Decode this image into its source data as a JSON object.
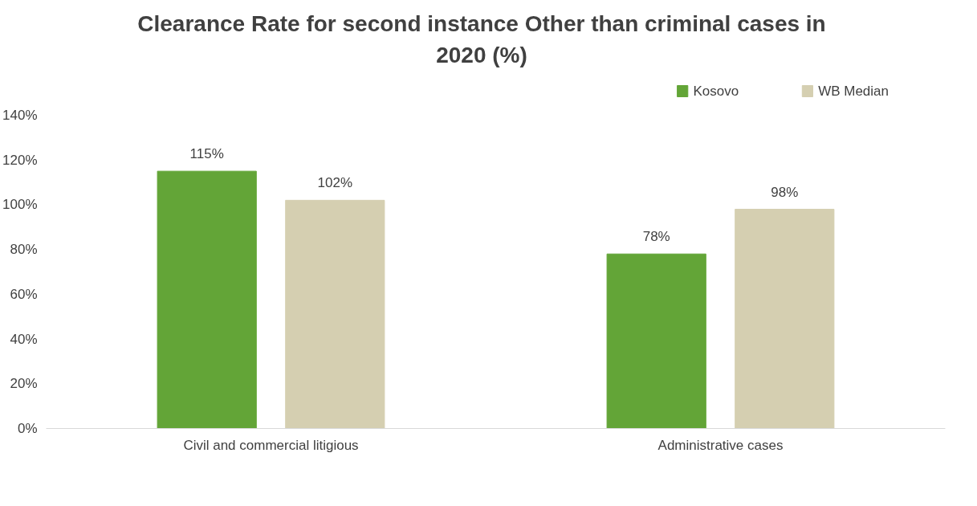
{
  "chart_data": {
    "type": "bar",
    "title": "Clearance Rate for second instance Other than criminal cases in\n2020 (%)",
    "categories": [
      "Civil and commercial litigious",
      "Administrative cases"
    ],
    "series": [
      {
        "name": "Kosovo",
        "color": "#63a537",
        "values": [
          115,
          78
        ],
        "value_labels": [
          "115%",
          "78%"
        ]
      },
      {
        "name": "WB Median",
        "color": "#d5cfb1",
        "values": [
          102,
          98
        ],
        "value_labels": [
          "102%",
          "98%"
        ]
      }
    ],
    "ylim": [
      0,
      140
    ],
    "yticks": [
      {
        "value": 0,
        "label": "0%"
      },
      {
        "value": 20,
        "label": "20%"
      },
      {
        "value": 40,
        "label": "40%"
      },
      {
        "value": 60,
        "label": "60%"
      },
      {
        "value": 80,
        "label": "80%"
      },
      {
        "value": 100,
        "label": "100%"
      },
      {
        "value": 120,
        "label": "120%"
      },
      {
        "value": 140,
        "label": "140%"
      }
    ],
    "grid": false,
    "legend": "top right"
  }
}
